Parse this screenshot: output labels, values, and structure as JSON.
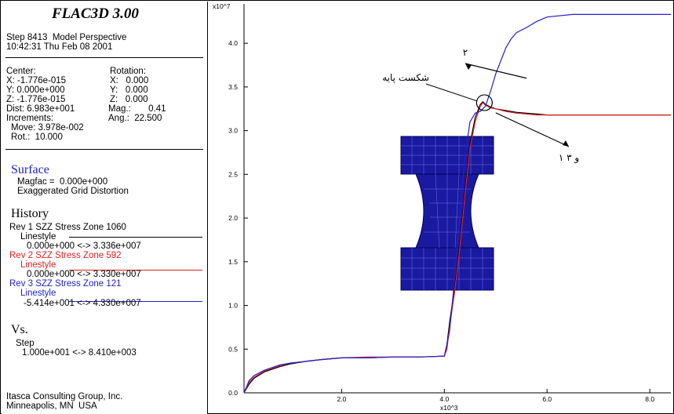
{
  "panel": {
    "app_title": "FLAC3D 3.00",
    "step_line": "Step 8413  Model Perspective",
    "time_line": "10:42:31 Thu Feb 08 2001",
    "center_label": "Center:",
    "center_x": "X: -1.776e-015",
    "center_y": "Y: 0.000e+000",
    "center_z": "Z: -1.776e-015",
    "rotation_label": "Rotation:",
    "rot_x": "X:   0.000",
    "rot_y": "Y:   0.000",
    "rot_z": "Z:   0.000",
    "dist": "Dist: 6.983e+001",
    "mag": "Mag.:       0.41",
    "increments": "Increments:",
    "ang": "Ang.:  22.500",
    "move": "Move: 3.978e-002",
    "rot": "Rot.:  10.000",
    "surface_title": "Surface",
    "magfac": "Magfac =  0.000e+000",
    "exaggerated": "Exaggerated Grid Distortion",
    "history_title": "History",
    "h1_title": "Rev 1 SZZ Stress Zone 1060",
    "h1_linestyle": "Linestyle",
    "h1_range": "0.000e+000 <-> 3.336e+007",
    "h2_title": "Rev 2 SZZ Stress Zone 592",
    "h2_linestyle": "Linestyle",
    "h2_range": "0.000e+000 <-> 3.330e+007",
    "h3_title": "Rev 3 SZZ Stress Zone 121",
    "h3_linestyle": "Linestyle",
    "h3_range": "-5.414e+001 <-> 4.330e+007",
    "vs_title": "Vs.",
    "vs_step": "Step",
    "vs_range": "1.000e+001 <-> 8.410e+003",
    "company": "Itasca Consulting Group, Inc.",
    "location": "Minneapolis, MN  USA"
  },
  "colors": {
    "h1": "#000000",
    "h2": "#e02020",
    "h3": "#2020d0",
    "mesh": "#1a1aa0"
  },
  "chart_data": {
    "type": "line",
    "x_scale_label": "x10^3",
    "y_scale_label": "x10^7",
    "xlim": [
      0.1,
      8.41
    ],
    "ylim": [
      0.0,
      4.45
    ],
    "x_ticks": [
      2.0,
      4.0,
      6.0,
      8.0
    ],
    "x_tick_labels": [
      "2.0",
      "4.0",
      "6.0",
      "8.0"
    ],
    "y_ticks": [
      0.0,
      0.5,
      1.0,
      1.5,
      2.0,
      2.5,
      3.0,
      3.5,
      4.0
    ],
    "y_tick_labels": [
      "0.0",
      "0.5",
      "1.0",
      "1.5",
      "2.0",
      "2.5",
      "3.0",
      "3.5",
      "4.0"
    ],
    "grid": false,
    "series": [
      {
        "key": "h1",
        "name": "Rev 1 SZZ Stress Zone 1060",
        "x": [
          0.1,
          0.2,
          0.3,
          0.5,
          0.8,
          1.0,
          1.3,
          1.6,
          2.0,
          2.5,
          3.0,
          3.5,
          4.0,
          4.05,
          4.1,
          4.2,
          4.3,
          4.4,
          4.5,
          4.6,
          4.7,
          4.75,
          4.8,
          4.9,
          5.0,
          5.2,
          5.4,
          5.6,
          5.8,
          6.0,
          6.5,
          7.0,
          7.5,
          8.0,
          8.41
        ],
        "y": [
          0.0,
          0.1,
          0.17,
          0.24,
          0.3,
          0.33,
          0.36,
          0.38,
          0.4,
          0.4,
          0.41,
          0.41,
          0.42,
          0.55,
          0.8,
          1.2,
          1.7,
          2.3,
          2.85,
          3.15,
          3.3,
          3.33,
          3.3,
          3.27,
          3.25,
          3.23,
          3.21,
          3.2,
          3.19,
          3.18,
          3.18,
          3.18,
          3.18,
          3.18,
          3.18
        ]
      },
      {
        "key": "h2",
        "name": "Rev 2 SZZ Stress Zone 592",
        "x": [
          0.1,
          0.2,
          0.3,
          0.5,
          0.8,
          1.0,
          1.3,
          1.6,
          2.0,
          2.5,
          3.0,
          3.5,
          4.0,
          4.05,
          4.1,
          4.2,
          4.3,
          4.4,
          4.5,
          4.6,
          4.7,
          4.75,
          4.8,
          4.9,
          5.0,
          5.2,
          5.4,
          5.6,
          5.8,
          6.0,
          6.5,
          7.0,
          7.5,
          8.0,
          8.41
        ],
        "y": [
          0.0,
          0.12,
          0.18,
          0.25,
          0.31,
          0.34,
          0.36,
          0.38,
          0.4,
          0.41,
          0.41,
          0.41,
          0.42,
          0.5,
          0.75,
          1.15,
          1.65,
          2.25,
          2.8,
          3.1,
          3.28,
          3.32,
          3.29,
          3.26,
          3.25,
          3.22,
          3.2,
          3.19,
          3.18,
          3.18,
          3.18,
          3.18,
          3.18,
          3.18,
          3.18
        ]
      },
      {
        "key": "h3",
        "name": "Rev 3 SZZ Stress Zone 121",
        "x": [
          0.1,
          0.2,
          0.3,
          0.5,
          0.8,
          1.0,
          1.3,
          1.6,
          2.0,
          2.5,
          3.0,
          3.5,
          4.0,
          4.1,
          4.2,
          4.3,
          4.4,
          4.5,
          4.6,
          4.7,
          4.8,
          4.9,
          5.0,
          5.1,
          5.2,
          5.3,
          5.4,
          5.5,
          5.6,
          5.8,
          6.0,
          6.5,
          7.0,
          7.5,
          8.0,
          8.41
        ],
        "y": [
          0.0,
          0.14,
          0.2,
          0.26,
          0.32,
          0.34,
          0.36,
          0.38,
          0.4,
          0.4,
          0.41,
          0.41,
          0.42,
          0.7,
          1.3,
          2.0,
          2.7,
          3.1,
          3.2,
          3.22,
          3.28,
          3.45,
          3.65,
          3.8,
          3.95,
          4.05,
          4.12,
          4.15,
          4.18,
          4.25,
          4.3,
          4.33,
          4.33,
          4.33,
          4.33,
          4.33
        ]
      }
    ],
    "annotations": [
      {
        "text": "شکست پایه",
        "target_x": 4.78,
        "target_y": 3.32
      },
      {
        "text": "۲",
        "target_x": 5.6,
        "target_y": 3.6
      },
      {
        "text": "۱ و ۳",
        "target_x": 5.0,
        "target_y": 3.24
      }
    ]
  }
}
